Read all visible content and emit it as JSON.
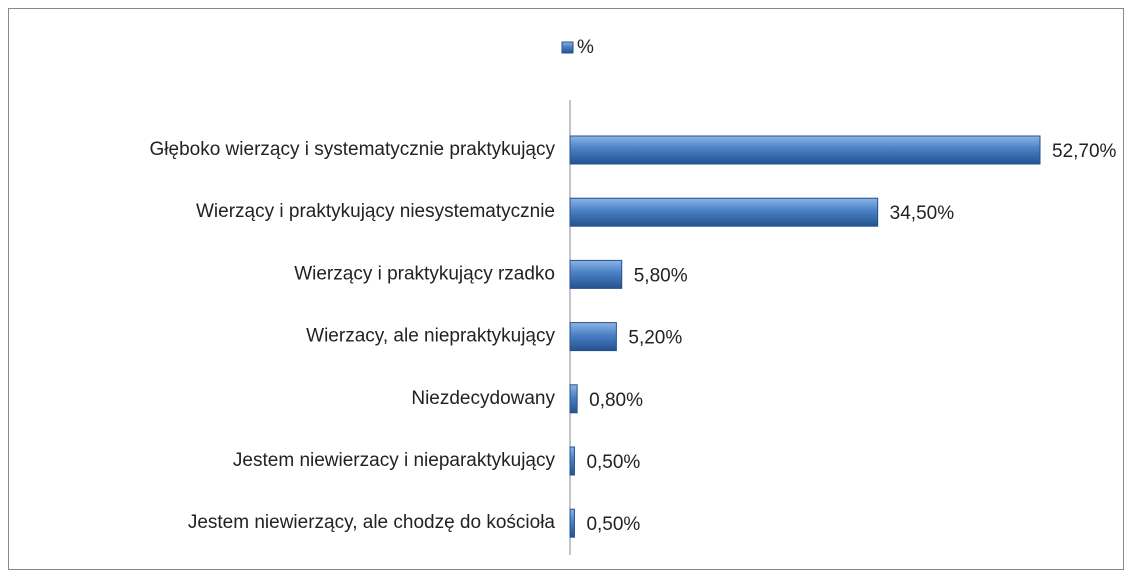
{
  "chart_data": {
    "type": "bar",
    "orientation": "horizontal",
    "categories": [
      "Głęboko wierzący i systematycznie praktykujący",
      "Wierzący i praktykujący niesystematycznie",
      "Wierzący i praktykujący rzadko",
      "Wierzacy, ale niepraktykujący",
      "Niezdecydowany",
      "Jestem niewierzacy i nieparaktykujący",
      "Jestem niewierzący, ale chodzę do kościoła"
    ],
    "series": [
      {
        "name": "%",
        "color": "#4a7fc4",
        "values": [
          52.7,
          34.5,
          5.8,
          5.2,
          0.8,
          0.5,
          0.5
        ],
        "value_labels": [
          "52,70%",
          "34,50%",
          "5,80%",
          "5,20%",
          "0,80%",
          "0,50%",
          "0,50%"
        ]
      }
    ],
    "legend": "top"
  }
}
